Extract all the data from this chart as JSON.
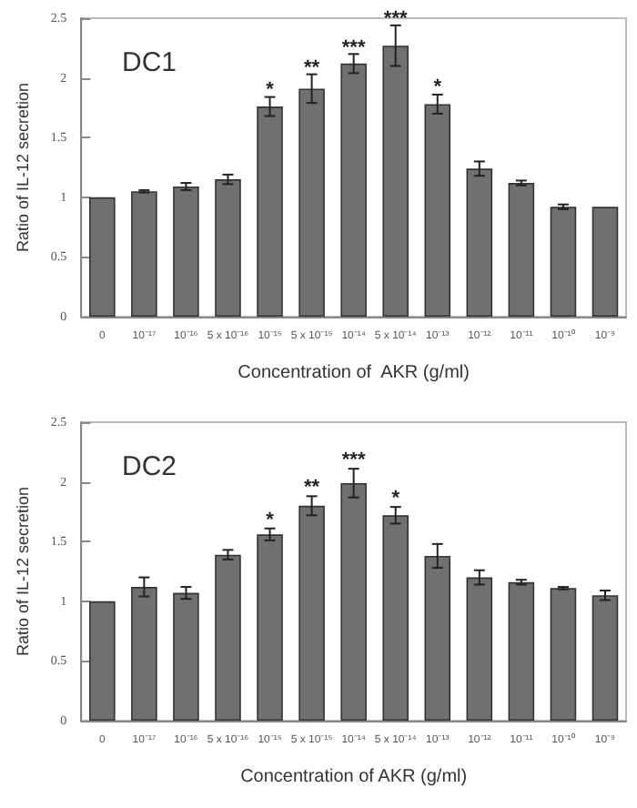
{
  "chart_data": [
    {
      "type": "bar",
      "title": "DC1",
      "xlabel": "Concentration of  AKR (g/ml)",
      "ylabel": "Ratio of IL-12 secretion",
      "categories": [
        "0",
        "10⁻¹⁷",
        "10⁻¹⁶",
        "5 x 10⁻¹⁶",
        "10⁻¹⁵",
        "5 x 10⁻¹⁵",
        "10⁻¹⁴",
        "5 x 10⁻¹⁴",
        "10⁻¹³",
        "10⁻¹²",
        "10⁻¹¹",
        "10⁻¹⁰",
        "10⁻⁹"
      ],
      "values": [
        1.0,
        1.05,
        1.09,
        1.15,
        1.76,
        1.91,
        2.12,
        2.27,
        1.78,
        1.24,
        1.12,
        0.92,
        0.92
      ],
      "errors": [
        null,
        0.01,
        0.03,
        0.04,
        0.08,
        0.12,
        0.08,
        0.17,
        0.08,
        0.06,
        0.02,
        0.02,
        null
      ],
      "color": "#707070",
      "ylim": [
        0,
        2.5
      ],
      "yticks": [
        0,
        0.5,
        1,
        1.5,
        2,
        2.5
      ],
      "grid": false,
      "annotations": [
        {
          "text": "*",
          "x": "10⁻¹⁵",
          "y": 1.9
        },
        {
          "text": "**",
          "x": "5 x 10⁻¹⁵",
          "y": 2.08
        },
        {
          "text": "***",
          "x": "10⁻¹⁴",
          "y": 2.25
        },
        {
          "text": "***",
          "x": "5 x 10⁻¹⁴",
          "y": 2.49
        },
        {
          "text": "*",
          "x": "10⁻¹³",
          "y": 1.92
        }
      ]
    },
    {
      "type": "bar",
      "title": "DC2",
      "xlabel": "Concentration of AKR (g/ml)",
      "ylabel": "Ratio of IL-12 secretion",
      "categories": [
        "0",
        "10⁻¹⁷",
        "10⁻¹⁶",
        "5 x 10⁻¹⁶",
        "10⁻¹⁵",
        "5 x 10⁻¹⁵",
        "10⁻¹⁴",
        "5 x 10⁻¹⁴",
        "10⁻¹³",
        "10⁻¹²",
        "10⁻¹¹",
        "10⁻¹⁰",
        "10⁻⁹"
      ],
      "values": [
        1.0,
        1.12,
        1.07,
        1.39,
        1.56,
        1.8,
        1.99,
        1.72,
        1.38,
        1.2,
        1.16,
        1.11,
        1.05
      ],
      "errors": [
        null,
        0.08,
        0.05,
        0.04,
        0.05,
        0.08,
        0.12,
        0.07,
        0.1,
        0.06,
        0.02,
        0.01,
        0.04
      ],
      "color": "#707070",
      "ylim": [
        0,
        2.5
      ],
      "yticks": [
        0,
        0.5,
        1,
        1.5,
        2,
        2.5
      ],
      "grid": false,
      "annotations": [
        {
          "text": "*",
          "x": "10⁻¹⁵",
          "y": 1.68
        },
        {
          "text": "**",
          "x": "5 x 10⁻¹⁵",
          "y": 1.95
        },
        {
          "text": "***",
          "x": "10⁻¹⁴",
          "y": 2.18
        },
        {
          "text": "*",
          "x": "5 x 10⁻¹⁴",
          "y": 1.86
        }
      ]
    }
  ]
}
